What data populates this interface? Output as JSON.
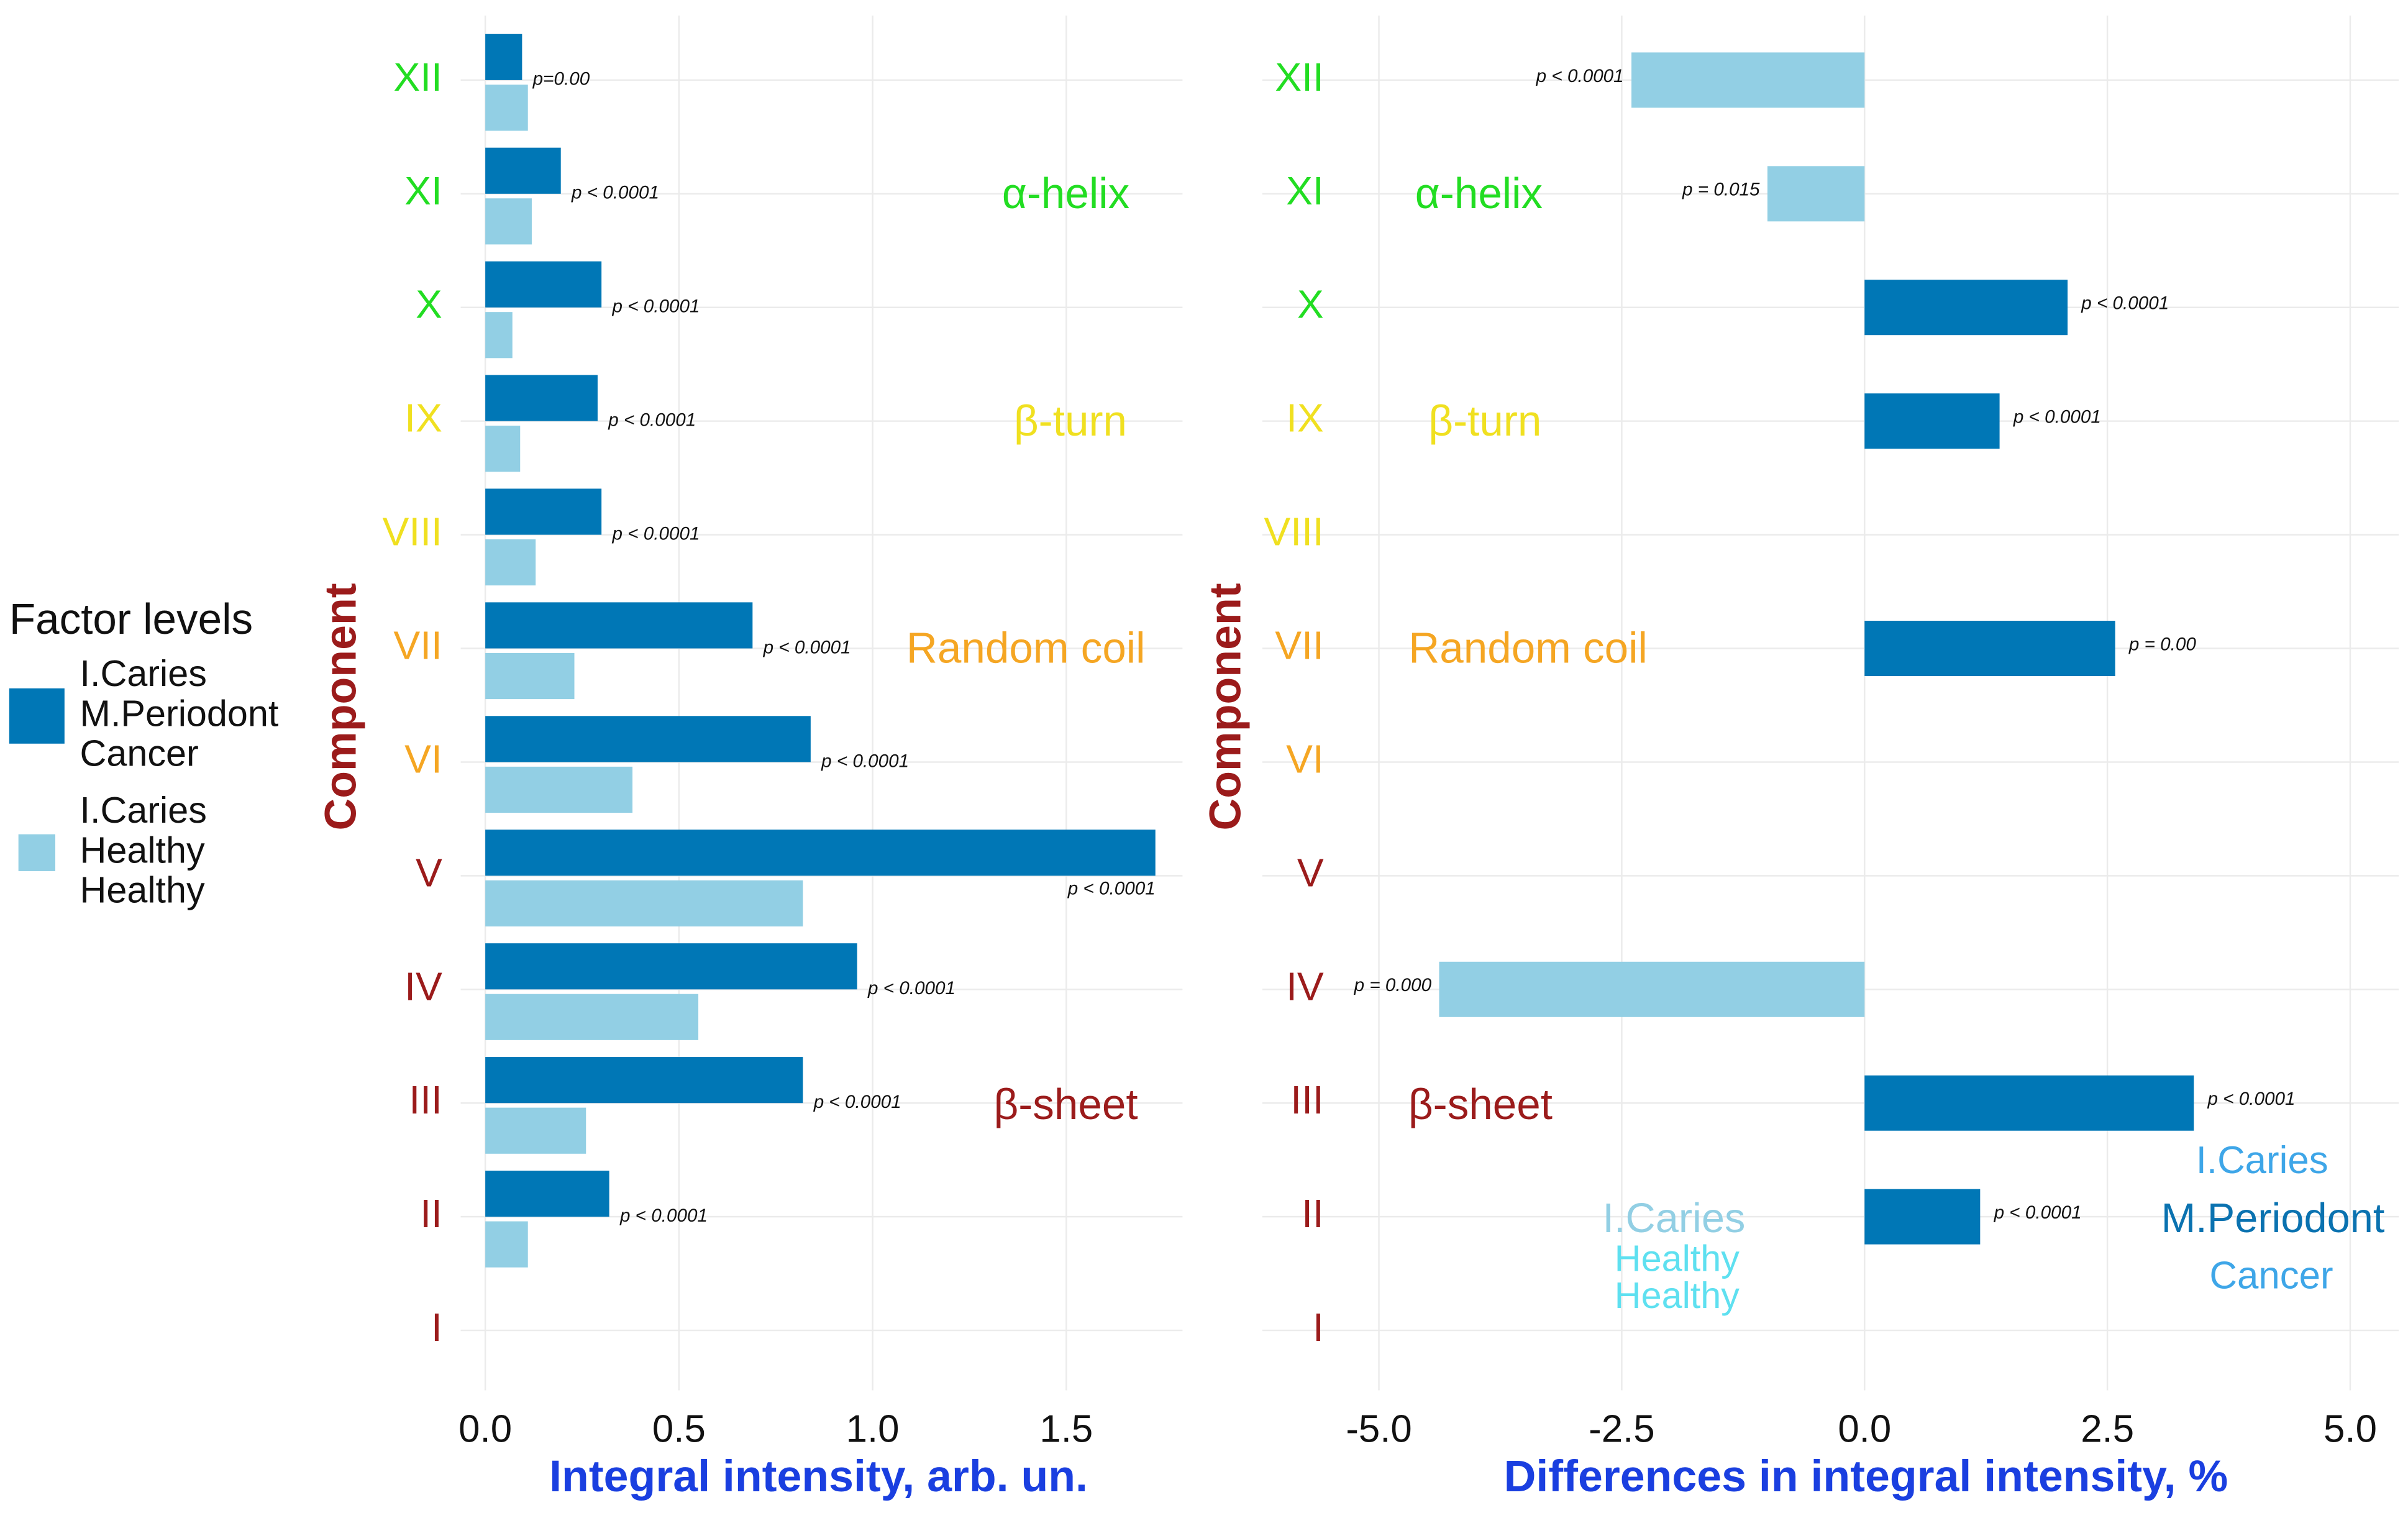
{
  "chart_data": [
    {
      "type": "bar",
      "orientation": "horizontal",
      "legend_title": "Factor levels",
      "categories": [
        "I",
        "II",
        "III",
        "IV",
        "V",
        "VI",
        "VII",
        "VIII",
        "IX",
        "X",
        "XI",
        "XII"
      ],
      "category_colors": [
        "#9b1b1b",
        "#9b1b1b",
        "#9b1b1b",
        "#9b1b1b",
        "#9b1b1b",
        "#f5a623",
        "#f5a623",
        "#f0e020",
        "#f0e020",
        "#22dd22",
        "#22dd22",
        "#22dd22"
      ],
      "series": [
        {
          "name": "I.Caries M.Periodont Cancer",
          "color": "#0077b6",
          "values": [
            null,
            0.32,
            0.82,
            0.96,
            1.73,
            0.84,
            0.69,
            0.3,
            0.29,
            0.3,
            0.195,
            0.095
          ]
        },
        {
          "name": "I.Caries Healthy Healthy",
          "color": "#92cfe4",
          "values": [
            null,
            0.11,
            0.26,
            0.55,
            0.82,
            0.38,
            0.23,
            0.13,
            0.09,
            0.07,
            0.12,
            0.11
          ]
        }
      ],
      "p_labels": [
        null,
        "p < 0.0001",
        "p < 0.0001",
        "p < 0.0001",
        "p < 0.0001",
        "p < 0.0001",
        "p < 0.0001",
        "p < 0.0001",
        "p < 0.0001",
        "p < 0.0001",
        "p < 0.0001",
        "p=0.00"
      ],
      "annotations": [
        {
          "text": "α-helix",
          "color": "#22dd22"
        },
        {
          "text": "β-turn",
          "color": "#f0e020"
        },
        {
          "text": "Random coil",
          "color": "#f5a623"
        },
        {
          "text": "β-sheet",
          "color": "#9b1b1b"
        }
      ],
      "xlabel": "Integral intensity, arb. un.",
      "ylabel": "Component",
      "xlim": [
        0,
        1.8
      ],
      "xticks": [
        {
          "value": 0,
          "label": "0.0"
        },
        0.5,
        {
          "value": 1,
          "label": "1.0"
        },
        1.5
      ],
      "grid": true
    },
    {
      "type": "bar",
      "orientation": "horizontal",
      "categories": [
        "I",
        "II",
        "III",
        "IV",
        "V",
        "VI",
        "VII",
        "VIII",
        "IX",
        "X",
        "XI",
        "XII"
      ],
      "category_colors": [
        "#9b1b1b",
        "#9b1b1b",
        "#9b1b1b",
        "#9b1b1b",
        "#9b1b1b",
        "#f5a623",
        "#f5a623",
        "#f0e020",
        "#f0e020",
        "#22dd22",
        "#22dd22",
        "#22dd22"
      ],
      "values": [
        null,
        1.19,
        3.39,
        -4.38,
        null,
        null,
        2.58,
        null,
        1.39,
        2.09,
        -1.0,
        -2.4
      ],
      "positive_color": "#0077b6",
      "negative_color": "#92cfe4",
      "p_labels": [
        null,
        "p <  0.0001",
        "p <  0.0001",
        "p = 0.000",
        null,
        null,
        "p =  0.00",
        null,
        "p <  0.0001",
        "p <  0.0001",
        "p =  0.015",
        "p <  0.0001"
      ],
      "annotations": [
        {
          "text": "α-helix",
          "color": "#22dd22"
        },
        {
          "text": "β-turn",
          "color": "#f0e020"
        },
        {
          "text": "Random coil",
          "color": "#f5a623"
        },
        {
          "text": "β-sheet",
          "color": "#9b1b1b"
        },
        {
          "text": "I.Caries",
          "color": "#92cfe4"
        },
        {
          "text": "Healthy",
          "color": "#5ee0f0"
        },
        {
          "text": "Healthy",
          "color": "#5ee0f0"
        },
        {
          "text": "I.Caries",
          "color": "#3ea6e8"
        },
        {
          "text": "M.Periodont",
          "color": "#0a72b0"
        },
        {
          "text": "Cancer",
          "color": "#3ea6e8"
        }
      ],
      "xlabel": "Differences in integral intensity, %",
      "ylabel": "Component",
      "xlim": [
        -6.2,
        5.5
      ],
      "xticks": [
        {
          "value": -5,
          "label": "-5.0"
        },
        {
          "value": -2.5,
          "label": "-2.5"
        },
        {
          "value": 0,
          "label": "0.0"
        },
        2.5,
        {
          "value": 5,
          "label": "5.0"
        }
      ],
      "grid": true
    }
  ]
}
